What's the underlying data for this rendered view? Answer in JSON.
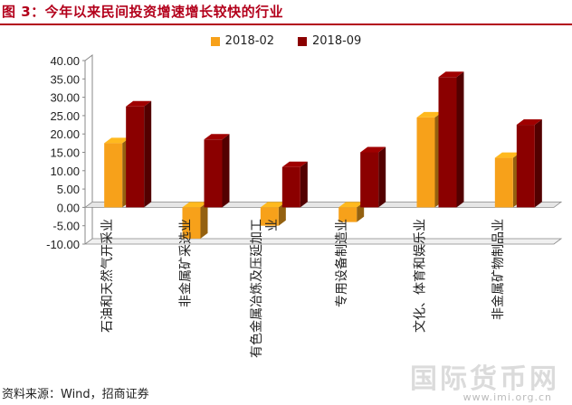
{
  "figure_title": "图 3：今年以来民间投资增速增长较快的行业",
  "source_note": "资料来源：Wind，招商证券",
  "watermark": "国际货币网",
  "watermark_url": "www.imi.org.cn",
  "colors": {
    "title": "#b3001b",
    "series1": "#f7a11a",
    "series2": "#8b0000",
    "axis": "#888888"
  },
  "chart_data": {
    "type": "bar",
    "title": "",
    "xlabel": "",
    "ylabel": "",
    "ylim": [
      -10,
      40
    ],
    "yticks": [
      "-10.00",
      "-5.00",
      "0.00",
      "5.00",
      "10.00",
      "15.00",
      "20.00",
      "25.00",
      "30.00",
      "35.00",
      "40.00"
    ],
    "ytick_values": [
      -10,
      -5,
      0,
      5,
      10,
      15,
      20,
      25,
      30,
      35,
      40
    ],
    "grid": false,
    "legend_position": "top-center",
    "categories": [
      "石油和天然气开采业",
      "非金属矿采选业",
      "有色金属冶炼及压延加工业",
      "专用设备制造业",
      "文化、体育和娱乐业",
      "非金属矿物制品业"
    ],
    "category_labels": [
      [
        "石油和天然气开采业"
      ],
      [
        "非金属矿采选业"
      ],
      [
        "有色金属冶炼及压延加工",
        "业"
      ],
      [
        "专用设备制造业"
      ],
      [
        "文化、体育和娱乐业"
      ],
      [
        "非金属矿物制品业"
      ]
    ],
    "series": [
      {
        "name": "2018-02",
        "values": [
          17.5,
          -8.5,
          -5.0,
          -4.0,
          24.5,
          13.5
        ]
      },
      {
        "name": "2018-09",
        "values": [
          27.5,
          18.5,
          11.0,
          15.0,
          35.5,
          22.5
        ]
      }
    ]
  }
}
